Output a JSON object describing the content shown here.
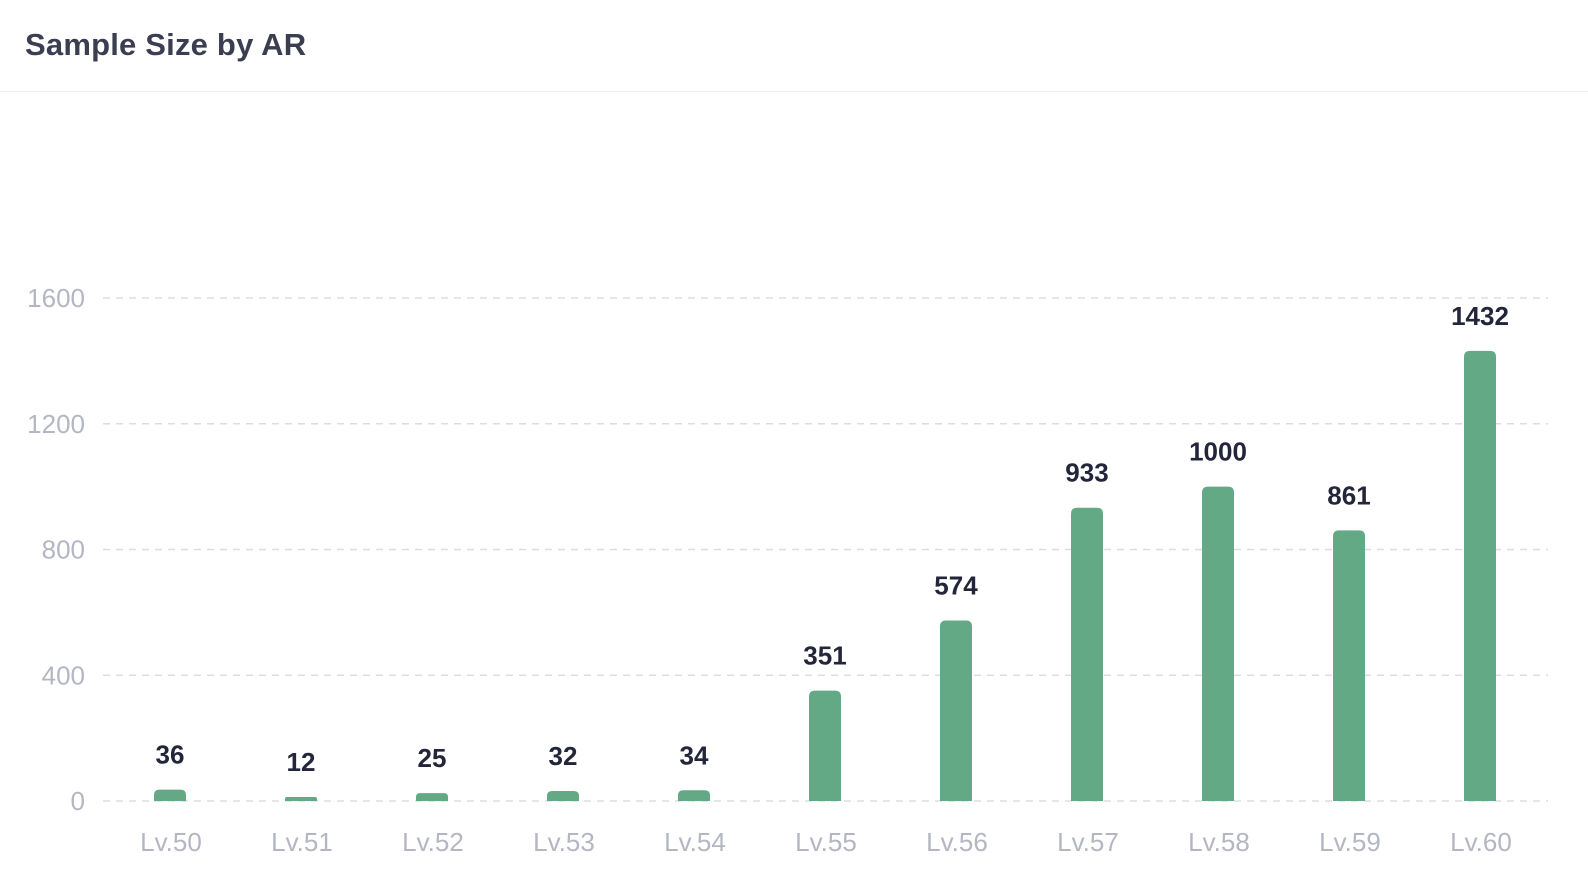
{
  "card": {
    "title": "Sample Size by AR"
  },
  "colors": {
    "bar": "#63a986",
    "grid": "#dcdde3",
    "tick_text": "#b4b6c2",
    "data_label": "#23263a",
    "title": "#3b3e51"
  },
  "chart_data": {
    "type": "bar",
    "title": "Sample Size by AR",
    "xlabel": "",
    "ylabel": "",
    "categories": [
      "Lv.50",
      "Lv.51",
      "Lv.52",
      "Lv.53",
      "Lv.54",
      "Lv.55",
      "Lv.56",
      "Lv.57",
      "Lv.58",
      "Lv.59",
      "Lv.60"
    ],
    "values": [
      36,
      12,
      25,
      32,
      34,
      351,
      574,
      933,
      1000,
      861,
      1432
    ],
    "ylim": [
      0,
      1600
    ],
    "yticks": [
      0,
      400,
      800,
      1200,
      1600
    ],
    "grid": true,
    "data_labels": true
  }
}
